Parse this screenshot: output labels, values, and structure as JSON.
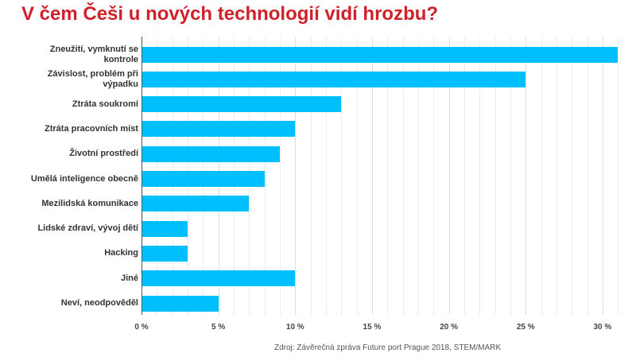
{
  "chart_data": {
    "type": "bar",
    "orientation": "horizontal",
    "title": "V čem Češi u nových technologií vidí hrozbu?",
    "categories": [
      "Zneužití, vymknutí se kontrole",
      "Závislost, problém při výpadku",
      "Ztráta soukromí",
      "Ztráta pracovních míst",
      "Životní prostředí",
      "Umělá inteligence obecně",
      "Mezilidská komunikace",
      "Lidské zdraví, vývoj dětí",
      "Hacking",
      "Jiné",
      "Neví, neodpověděl"
    ],
    "values": [
      31,
      25,
      13,
      10,
      9,
      8,
      7,
      3,
      3,
      10,
      5
    ],
    "xlabel": "",
    "ylabel": "",
    "xlim": [
      0,
      31
    ],
    "x_ticks": [
      "0 %",
      "5 %",
      "10 %",
      "15 %",
      "20 %",
      "25 %",
      "30 %"
    ],
    "grid": true,
    "legend": "none",
    "bar_color": "#00bfff",
    "source": "Zdroj: Závěrečná zpráva Future port Prague 2018, STEM/MARK"
  },
  "labels": {
    "l0": "Zneužití, vymknutí se kontrole",
    "l1": "Závislost, problém při výpadku",
    "l2": "Ztráta soukromí",
    "l3": "Ztráta pracovních míst",
    "l4": "Životní prostředí",
    "l5": "Umělá inteligence obecně",
    "l6": "Mezilidská komunikace",
    "l7": "Lidské zdraví, vývoj dětí",
    "l8": "Hacking",
    "l9": "Jiné",
    "l10": "Neví, neodpověděl"
  }
}
